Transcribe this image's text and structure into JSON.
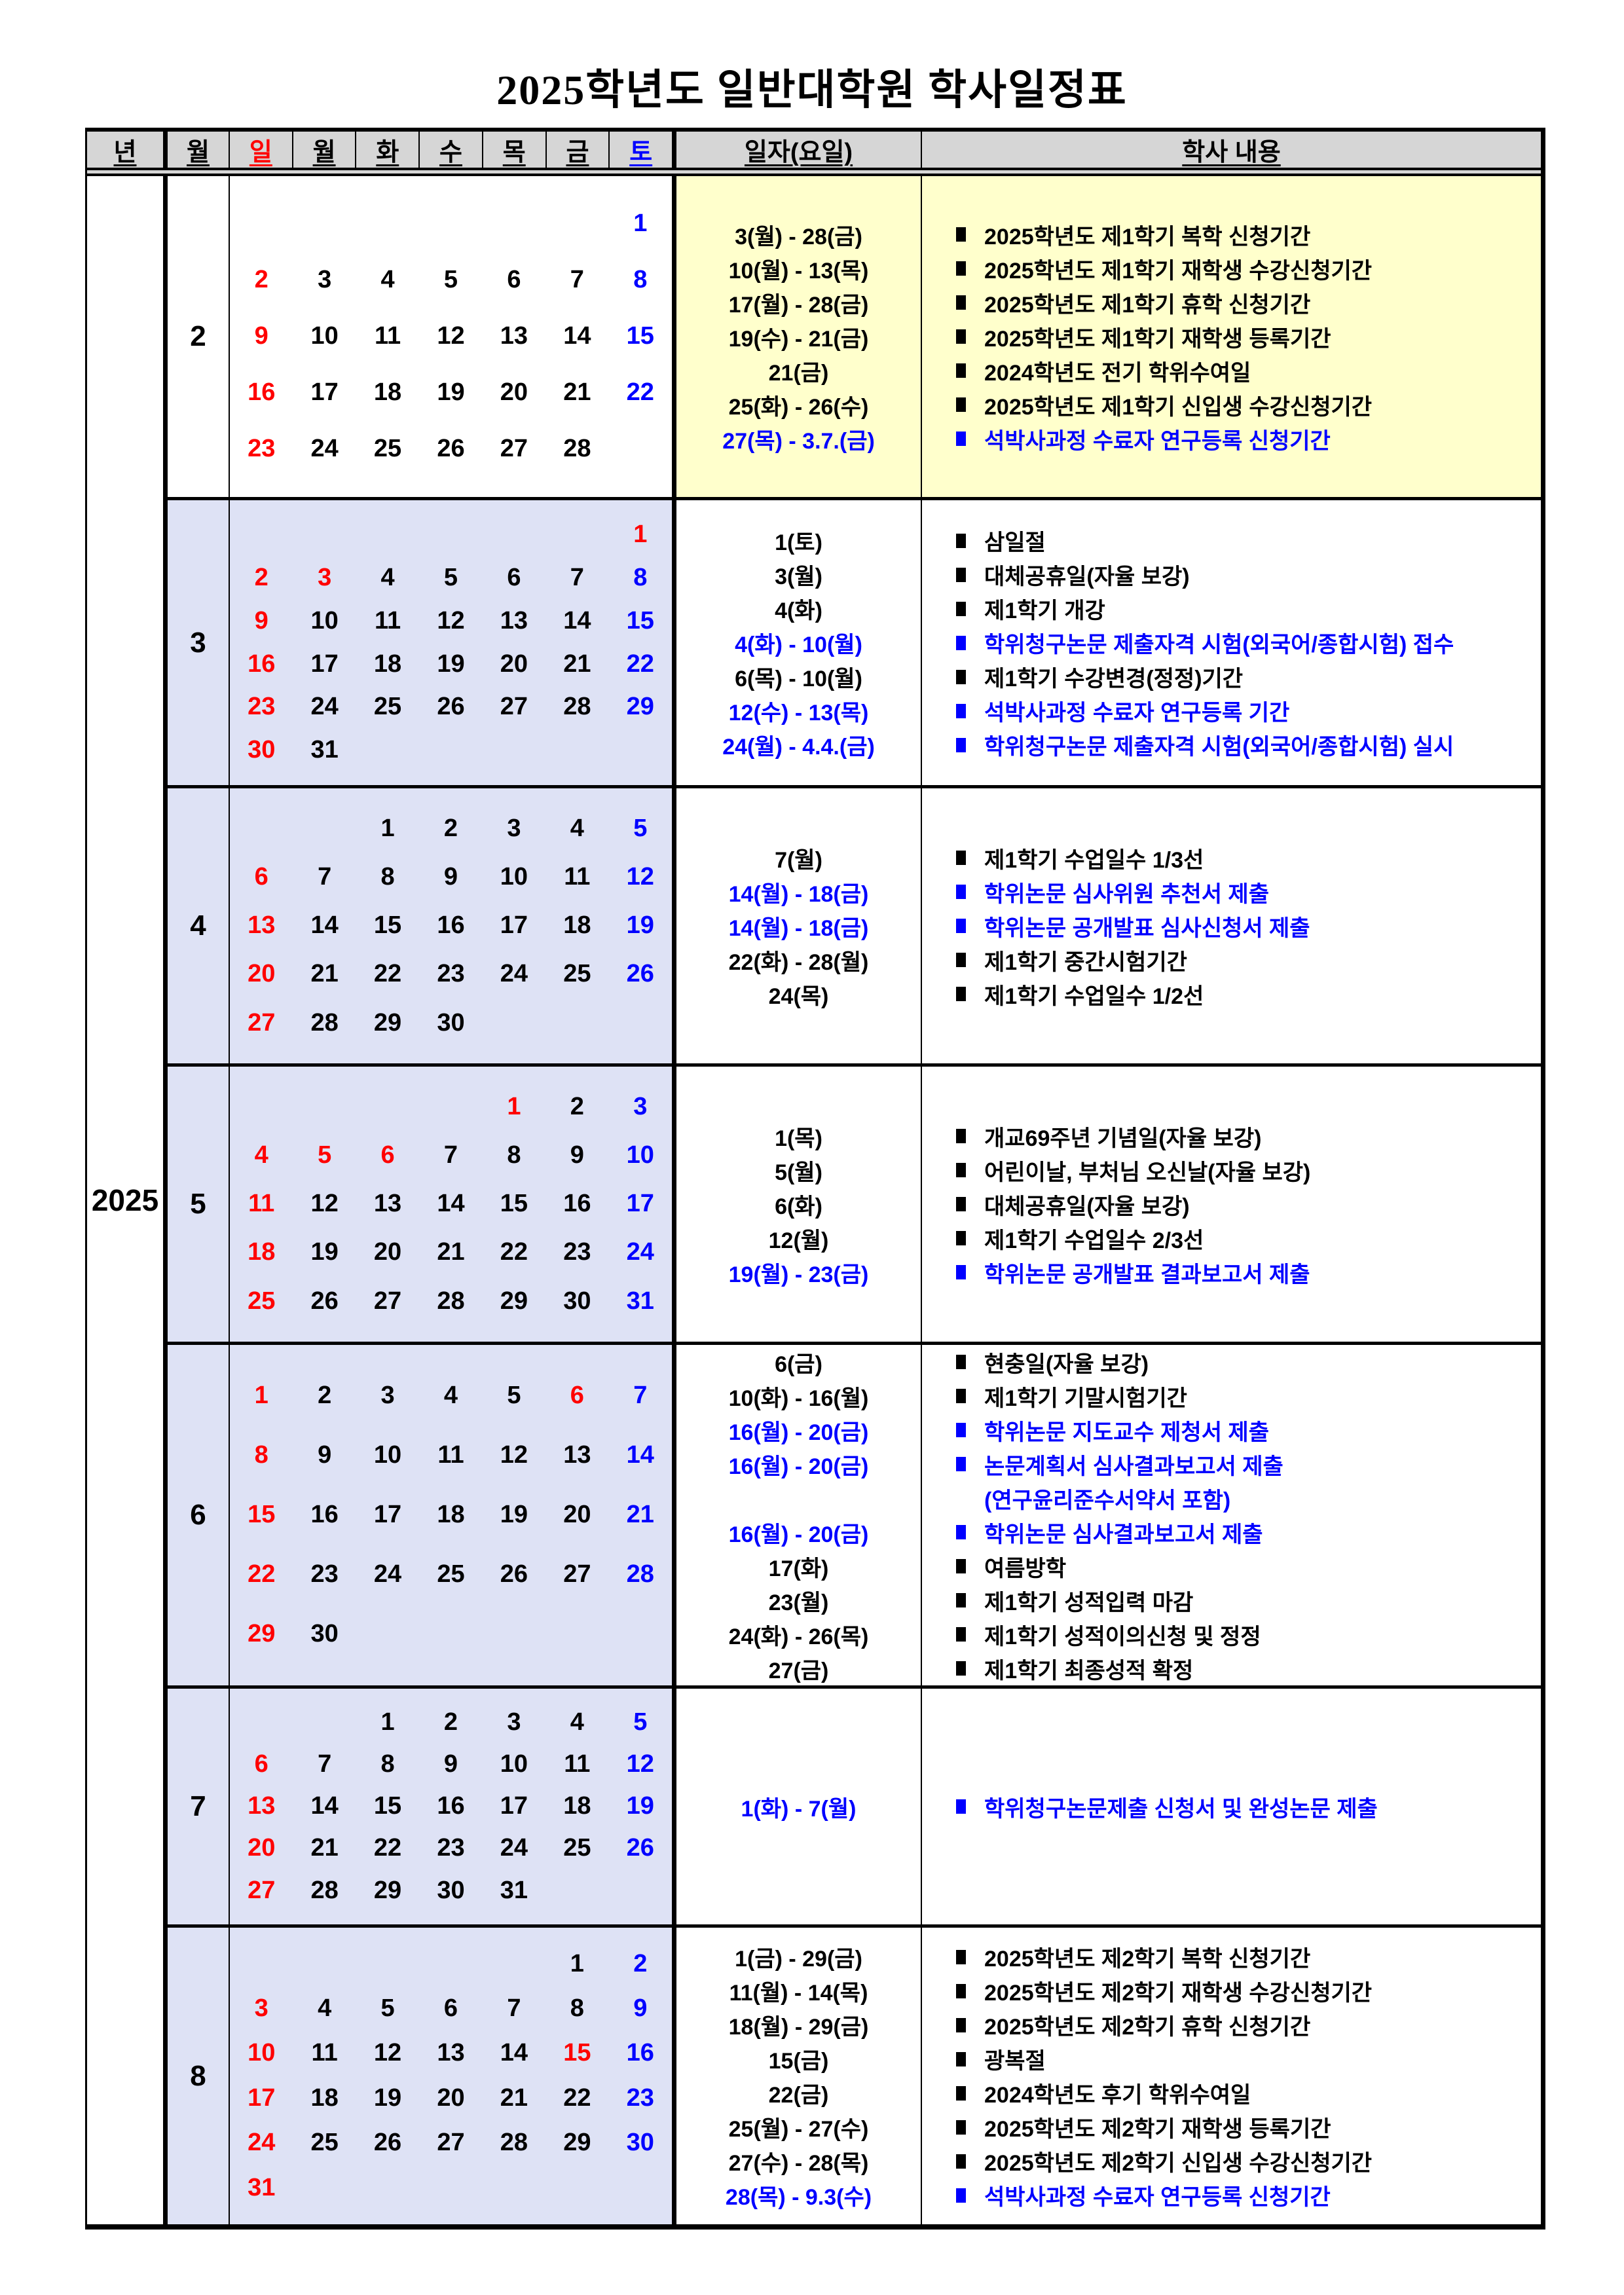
{
  "title": "2025학년도 일반대학원 학사일정표",
  "year": "2025",
  "colors": {
    "r": "#FF0000",
    "b": "#0000FF",
    "black": "#000000",
    "header_bg": "#D6D6D6",
    "yellow_bg": "#FFFFCC",
    "lavender_bg": "#DEE2F5"
  },
  "header": {
    "year": "년",
    "month": "월",
    "days": [
      {
        "key": "sun",
        "label": "일",
        "c": "r"
      },
      {
        "key": "mon",
        "label": "월"
      },
      {
        "key": "tue",
        "label": "화"
      },
      {
        "key": "wed",
        "label": "수"
      },
      {
        "key": "thu",
        "label": "목"
      },
      {
        "key": "fri",
        "label": "금"
      },
      {
        "key": "sat",
        "label": "토",
        "c": "b"
      }
    ],
    "date": "일자(요일)",
    "content": "학사 내용"
  },
  "months": [
    {
      "num": "2",
      "theme": "yellow",
      "weeks": [
        [
          null,
          null,
          null,
          null,
          null,
          null,
          {
            "v": "1",
            "c": "b"
          }
        ],
        [
          {
            "v": "2",
            "c": "r"
          },
          {
            "v": "3"
          },
          {
            "v": "4"
          },
          {
            "v": "5"
          },
          {
            "v": "6"
          },
          {
            "v": "7"
          },
          {
            "v": "8",
            "c": "b"
          }
        ],
        [
          {
            "v": "9",
            "c": "r"
          },
          {
            "v": "10"
          },
          {
            "v": "11"
          },
          {
            "v": "12"
          },
          {
            "v": "13"
          },
          {
            "v": "14"
          },
          {
            "v": "15",
            "c": "b"
          }
        ],
        [
          {
            "v": "16",
            "c": "r"
          },
          {
            "v": "17"
          },
          {
            "v": "18"
          },
          {
            "v": "19"
          },
          {
            "v": "20"
          },
          {
            "v": "21"
          },
          {
            "v": "22",
            "c": "b"
          }
        ],
        [
          {
            "v": "23",
            "c": "r"
          },
          {
            "v": "24"
          },
          {
            "v": "25"
          },
          {
            "v": "26"
          },
          {
            "v": "27"
          },
          {
            "v": "28"
          },
          null
        ]
      ],
      "schedule": [
        {
          "date": "3(월) - 28(금)",
          "text": "2025학년도 제1학기 복학 신청기간"
        },
        {
          "date": "10(월) - 13(목)",
          "text": "2025학년도 제1학기 재학생 수강신청기간"
        },
        {
          "date": "17(월) - 28(금)",
          "text": "2025학년도 제1학기 휴학 신청기간"
        },
        {
          "date": "19(수) - 21(금)",
          "text": "2025학년도 제1학기 재학생 등록기간"
        },
        {
          "date": "21(금)",
          "text": "2024학년도 전기 학위수여일"
        },
        {
          "date": "25(화) - 26(수)",
          "text": "2025학년도 제1학기 신입생 수강신청기간"
        },
        {
          "date": "27(목) - 3.7.(금)",
          "text": "석박사과정 수료자 연구등록 신청기간",
          "c": "b"
        }
      ]
    },
    {
      "num": "3",
      "theme": "lav",
      "weeks": [
        [
          null,
          null,
          null,
          null,
          null,
          null,
          {
            "v": "1",
            "c": "r"
          }
        ],
        [
          {
            "v": "2",
            "c": "r"
          },
          {
            "v": "3",
            "c": "r"
          },
          {
            "v": "4"
          },
          {
            "v": "5"
          },
          {
            "v": "6"
          },
          {
            "v": "7"
          },
          {
            "v": "8",
            "c": "b"
          }
        ],
        [
          {
            "v": "9",
            "c": "r"
          },
          {
            "v": "10"
          },
          {
            "v": "11"
          },
          {
            "v": "12"
          },
          {
            "v": "13"
          },
          {
            "v": "14"
          },
          {
            "v": "15",
            "c": "b"
          }
        ],
        [
          {
            "v": "16",
            "c": "r"
          },
          {
            "v": "17"
          },
          {
            "v": "18"
          },
          {
            "v": "19"
          },
          {
            "v": "20"
          },
          {
            "v": "21"
          },
          {
            "v": "22",
            "c": "b"
          }
        ],
        [
          {
            "v": "23",
            "c": "r"
          },
          {
            "v": "24"
          },
          {
            "v": "25"
          },
          {
            "v": "26"
          },
          {
            "v": "27"
          },
          {
            "v": "28"
          },
          {
            "v": "29",
            "c": "b"
          }
        ],
        [
          {
            "v": "30",
            "c": "r"
          },
          {
            "v": "31"
          },
          null,
          null,
          null,
          null,
          null
        ]
      ],
      "schedule": [
        {
          "date": "1(토)",
          "text": "삼일절"
        },
        {
          "date": "3(월)",
          "text": "대체공휴일(자율 보강)"
        },
        {
          "date": "4(화)",
          "text": "제1학기 개강"
        },
        {
          "date": "4(화) - 10(월)",
          "text": "학위청구논문 제출자격 시험(외국어/종합시험) 접수",
          "c": "b"
        },
        {
          "date": "6(목) - 10(월)",
          "text": "제1학기 수강변경(정정)기간"
        },
        {
          "date": "12(수) - 13(목)",
          "text": "석박사과정 수료자 연구등록 기간",
          "c": "b"
        },
        {
          "date": "24(월) - 4.4.(금)",
          "text": "학위청구논문 제출자격 시험(외국어/종합시험) 실시",
          "c": "b"
        }
      ]
    },
    {
      "num": "4",
      "theme": "lav",
      "weeks": [
        [
          null,
          null,
          {
            "v": "1"
          },
          {
            "v": "2"
          },
          {
            "v": "3"
          },
          {
            "v": "4"
          },
          {
            "v": "5",
            "c": "b"
          }
        ],
        [
          {
            "v": "6",
            "c": "r"
          },
          {
            "v": "7"
          },
          {
            "v": "8"
          },
          {
            "v": "9"
          },
          {
            "v": "10"
          },
          {
            "v": "11"
          },
          {
            "v": "12",
            "c": "b"
          }
        ],
        [
          {
            "v": "13",
            "c": "r"
          },
          {
            "v": "14"
          },
          {
            "v": "15"
          },
          {
            "v": "16"
          },
          {
            "v": "17"
          },
          {
            "v": "18"
          },
          {
            "v": "19",
            "c": "b"
          }
        ],
        [
          {
            "v": "20",
            "c": "r"
          },
          {
            "v": "21"
          },
          {
            "v": "22"
          },
          {
            "v": "23"
          },
          {
            "v": "24"
          },
          {
            "v": "25"
          },
          {
            "v": "26",
            "c": "b"
          }
        ],
        [
          {
            "v": "27",
            "c": "r"
          },
          {
            "v": "28"
          },
          {
            "v": "29"
          },
          {
            "v": "30"
          },
          null,
          null,
          null
        ]
      ],
      "schedule": [
        {
          "date": "7(월)",
          "text": "제1학기 수업일수 1/3선"
        },
        {
          "date": "14(월) - 18(금)",
          "text": "학위논문 심사위원 추천서 제출",
          "c": "b"
        },
        {
          "date": "14(월) - 18(금)",
          "text": "학위논문 공개발표 심사신청서 제출",
          "c": "b"
        },
        {
          "date": "22(화) - 28(월)",
          "text": "제1학기 중간시험기간"
        },
        {
          "date": "24(목)",
          "text": "제1학기 수업일수 1/2선"
        }
      ]
    },
    {
      "num": "5",
      "theme": "lav",
      "weeks": [
        [
          null,
          null,
          null,
          null,
          {
            "v": "1",
            "c": "r"
          },
          {
            "v": "2"
          },
          {
            "v": "3",
            "c": "b"
          }
        ],
        [
          {
            "v": "4",
            "c": "r"
          },
          {
            "v": "5",
            "c": "r"
          },
          {
            "v": "6",
            "c": "r"
          },
          {
            "v": "7"
          },
          {
            "v": "8"
          },
          {
            "v": "9"
          },
          {
            "v": "10",
            "c": "b"
          }
        ],
        [
          {
            "v": "11",
            "c": "r"
          },
          {
            "v": "12"
          },
          {
            "v": "13"
          },
          {
            "v": "14"
          },
          {
            "v": "15"
          },
          {
            "v": "16"
          },
          {
            "v": "17",
            "c": "b"
          }
        ],
        [
          {
            "v": "18",
            "c": "r"
          },
          {
            "v": "19"
          },
          {
            "v": "20"
          },
          {
            "v": "21"
          },
          {
            "v": "22"
          },
          {
            "v": "23"
          },
          {
            "v": "24",
            "c": "b"
          }
        ],
        [
          {
            "v": "25",
            "c": "r"
          },
          {
            "v": "26"
          },
          {
            "v": "27"
          },
          {
            "v": "28"
          },
          {
            "v": "29"
          },
          {
            "v": "30"
          },
          {
            "v": "31",
            "c": "b"
          }
        ]
      ],
      "schedule": [
        {
          "date": "1(목)",
          "text": "개교69주년 기념일(자율 보강)"
        },
        {
          "date": "5(월)",
          "text": "어린이날, 부처님 오신날(자율 보강)"
        },
        {
          "date": "6(화)",
          "text": "대체공휴일(자율 보강)"
        },
        {
          "date": "12(월)",
          "text": "제1학기 수업일수 2/3선"
        },
        {
          "date": "19(월) - 23(금)",
          "text": "학위논문 공개발표 결과보고서 제출",
          "c": "b"
        }
      ]
    },
    {
      "num": "6",
      "theme": "lav",
      "weeks": [
        [
          {
            "v": "1",
            "c": "r"
          },
          {
            "v": "2"
          },
          {
            "v": "3"
          },
          {
            "v": "4"
          },
          {
            "v": "5"
          },
          {
            "v": "6",
            "c": "r"
          },
          {
            "v": "7",
            "c": "b"
          }
        ],
        [
          {
            "v": "8",
            "c": "r"
          },
          {
            "v": "9"
          },
          {
            "v": "10"
          },
          {
            "v": "11"
          },
          {
            "v": "12"
          },
          {
            "v": "13"
          },
          {
            "v": "14",
            "c": "b"
          }
        ],
        [
          {
            "v": "15",
            "c": "r"
          },
          {
            "v": "16"
          },
          {
            "v": "17"
          },
          {
            "v": "18"
          },
          {
            "v": "19"
          },
          {
            "v": "20"
          },
          {
            "v": "21",
            "c": "b"
          }
        ],
        [
          {
            "v": "22",
            "c": "r"
          },
          {
            "v": "23"
          },
          {
            "v": "24"
          },
          {
            "v": "25"
          },
          {
            "v": "26"
          },
          {
            "v": "27"
          },
          {
            "v": "28",
            "c": "b"
          }
        ],
        [
          {
            "v": "29",
            "c": "r"
          },
          {
            "v": "30"
          },
          null,
          null,
          null,
          null,
          null
        ]
      ],
      "schedule": [
        {
          "date": "6(금)",
          "text": "현충일(자율 보강)"
        },
        {
          "date": "10(화) - 16(월)",
          "text": "제1학기 기말시험기간"
        },
        {
          "date": "16(월) - 20(금)",
          "text": "학위논문 지도교수 제청서 제출",
          "c": "b"
        },
        {
          "date": "16(월) - 20(금)",
          "text": "논문계획서 심사결과보고서 제출",
          "c": "b"
        },
        {
          "date": "",
          "text": "(연구윤리준수서약서 포함)",
          "c": "b",
          "cont": true
        },
        {
          "date": "16(월) - 20(금)",
          "text": "학위논문 심사결과보고서 제출",
          "c": "b"
        },
        {
          "date": "17(화)",
          "text": "여름방학"
        },
        {
          "date": "23(월)",
          "text": "제1학기 성적입력 마감"
        },
        {
          "date": "24(화) - 26(목)",
          "text": "제1학기 성적이의신청 및 정정"
        },
        {
          "date": "27(금)",
          "text": "제1학기 최종성적 확정"
        }
      ]
    },
    {
      "num": "7",
      "theme": "lav",
      "weeks": [
        [
          null,
          null,
          {
            "v": "1"
          },
          {
            "v": "2"
          },
          {
            "v": "3"
          },
          {
            "v": "4"
          },
          {
            "v": "5",
            "c": "b"
          }
        ],
        [
          {
            "v": "6",
            "c": "r"
          },
          {
            "v": "7"
          },
          {
            "v": "8"
          },
          {
            "v": "9"
          },
          {
            "v": "10"
          },
          {
            "v": "11"
          },
          {
            "v": "12",
            "c": "b"
          }
        ],
        [
          {
            "v": "13",
            "c": "r"
          },
          {
            "v": "14"
          },
          {
            "v": "15"
          },
          {
            "v": "16"
          },
          {
            "v": "17"
          },
          {
            "v": "18"
          },
          {
            "v": "19",
            "c": "b"
          }
        ],
        [
          {
            "v": "20",
            "c": "r"
          },
          {
            "v": "21"
          },
          {
            "v": "22"
          },
          {
            "v": "23"
          },
          {
            "v": "24"
          },
          {
            "v": "25"
          },
          {
            "v": "26",
            "c": "b"
          }
        ],
        [
          {
            "v": "27",
            "c": "r"
          },
          {
            "v": "28"
          },
          {
            "v": "29"
          },
          {
            "v": "30"
          },
          {
            "v": "31"
          },
          null,
          null
        ]
      ],
      "schedule": [
        {
          "date": "1(화) - 7(월)",
          "text": "학위청구논문제출 신청서 및 완성논문 제출",
          "c": "b"
        }
      ]
    },
    {
      "num": "8",
      "theme": "lav",
      "weeks": [
        [
          null,
          null,
          null,
          null,
          null,
          {
            "v": "1"
          },
          {
            "v": "2",
            "c": "b"
          }
        ],
        [
          {
            "v": "3",
            "c": "r"
          },
          {
            "v": "4"
          },
          {
            "v": "5"
          },
          {
            "v": "6"
          },
          {
            "v": "7"
          },
          {
            "v": "8"
          },
          {
            "v": "9",
            "c": "b"
          }
        ],
        [
          {
            "v": "10",
            "c": "r"
          },
          {
            "v": "11"
          },
          {
            "v": "12"
          },
          {
            "v": "13"
          },
          {
            "v": "14"
          },
          {
            "v": "15",
            "c": "r"
          },
          {
            "v": "16",
            "c": "b"
          }
        ],
        [
          {
            "v": "17",
            "c": "r"
          },
          {
            "v": "18"
          },
          {
            "v": "19"
          },
          {
            "v": "20"
          },
          {
            "v": "21"
          },
          {
            "v": "22"
          },
          {
            "v": "23",
            "c": "b"
          }
        ],
        [
          {
            "v": "24",
            "c": "r"
          },
          {
            "v": "25"
          },
          {
            "v": "26"
          },
          {
            "v": "27"
          },
          {
            "v": "28"
          },
          {
            "v": "29"
          },
          {
            "v": "30",
            "c": "b"
          }
        ],
        [
          {
            "v": "31",
            "c": "r"
          },
          null,
          null,
          null,
          null,
          null,
          null
        ]
      ],
      "schedule": [
        {
          "date": "1(금) - 29(금)",
          "text": "2025학년도 제2학기 복학 신청기간"
        },
        {
          "date": "11(월) - 14(목)",
          "text": "2025학년도 제2학기 재학생 수강신청기간"
        },
        {
          "date": "18(월) - 29(금)",
          "text": "2025학년도 제2학기 휴학 신청기간"
        },
        {
          "date": "15(금)",
          "text": "광복절"
        },
        {
          "date": "22(금)",
          "text": "2024학년도 후기 학위수여일"
        },
        {
          "date": "25(월) - 27(수)",
          "text": "2025학년도 제2학기 재학생 등록기간"
        },
        {
          "date": "27(수) - 28(목)",
          "text": "2025학년도 제2학기 신입생 수강신청기간"
        },
        {
          "date": "28(목) - 9.3(수)",
          "text": "석박사과정 수료자 연구등록 신청기간",
          "c": "b"
        }
      ]
    }
  ]
}
